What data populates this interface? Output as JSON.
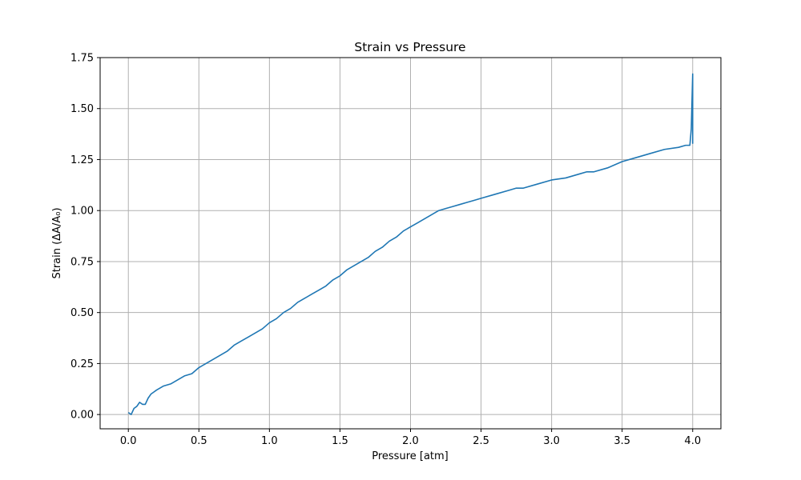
{
  "chart_data": {
    "type": "line",
    "title": "Strain vs Pressure",
    "xlabel": "Pressure [atm]",
    "ylabel": "Strain (ΔA/A₀)",
    "xlim": [
      -0.2,
      4.2
    ],
    "ylim": [
      -0.07,
      1.75
    ],
    "xticks": [
      0.0,
      0.5,
      1.0,
      1.5,
      2.0,
      2.5,
      3.0,
      3.5,
      4.0
    ],
    "xtick_labels": [
      "0.0",
      "0.5",
      "1.0",
      "1.5",
      "2.0",
      "2.5",
      "3.0",
      "3.5",
      "4.0"
    ],
    "yticks": [
      0.0,
      0.25,
      0.5,
      0.75,
      1.0,
      1.25,
      1.5,
      1.75
    ],
    "ytick_labels": [
      "0.00",
      "0.25",
      "0.50",
      "0.75",
      "1.00",
      "1.25",
      "1.50",
      "1.75"
    ],
    "grid": true,
    "line_color": "#1f77b4",
    "series": [
      {
        "x": [
          0.0,
          0.02,
          0.04,
          0.06,
          0.08,
          0.1,
          0.12,
          0.14,
          0.16,
          0.18,
          0.2,
          0.25,
          0.3,
          0.35,
          0.4,
          0.45,
          0.5,
          0.55,
          0.6,
          0.65,
          0.7,
          0.75,
          0.8,
          0.85,
          0.9,
          0.95,
          1.0,
          1.05,
          1.1,
          1.15,
          1.2,
          1.25,
          1.3,
          1.35,
          1.4,
          1.45,
          1.5,
          1.55,
          1.6,
          1.65,
          1.7,
          1.75,
          1.8,
          1.85,
          1.9,
          1.95,
          2.0,
          2.05,
          2.1,
          2.15,
          2.2,
          2.25,
          2.3,
          2.35,
          2.4,
          2.45,
          2.5,
          2.6,
          2.7,
          2.75,
          2.8,
          2.9,
          3.0,
          3.1,
          3.2,
          3.25,
          3.3,
          3.4,
          3.5,
          3.6,
          3.7,
          3.8,
          3.9,
          3.95,
          3.98,
          3.99,
          4.0,
          4.0,
          4.0
        ],
        "y": [
          0.01,
          0.0,
          0.03,
          0.04,
          0.06,
          0.05,
          0.05,
          0.08,
          0.1,
          0.11,
          0.12,
          0.14,
          0.15,
          0.17,
          0.19,
          0.2,
          0.23,
          0.25,
          0.27,
          0.29,
          0.31,
          0.34,
          0.36,
          0.38,
          0.4,
          0.42,
          0.45,
          0.47,
          0.5,
          0.52,
          0.55,
          0.57,
          0.59,
          0.61,
          0.63,
          0.66,
          0.68,
          0.71,
          0.73,
          0.75,
          0.77,
          0.8,
          0.82,
          0.85,
          0.87,
          0.9,
          0.92,
          0.94,
          0.96,
          0.98,
          1.0,
          1.01,
          1.02,
          1.03,
          1.04,
          1.05,
          1.06,
          1.08,
          1.1,
          1.11,
          1.11,
          1.13,
          1.15,
          1.16,
          1.18,
          1.19,
          1.19,
          1.21,
          1.24,
          1.26,
          1.28,
          1.3,
          1.31,
          1.32,
          1.32,
          1.4,
          1.67,
          1.33,
          1.55
        ]
      }
    ]
  }
}
